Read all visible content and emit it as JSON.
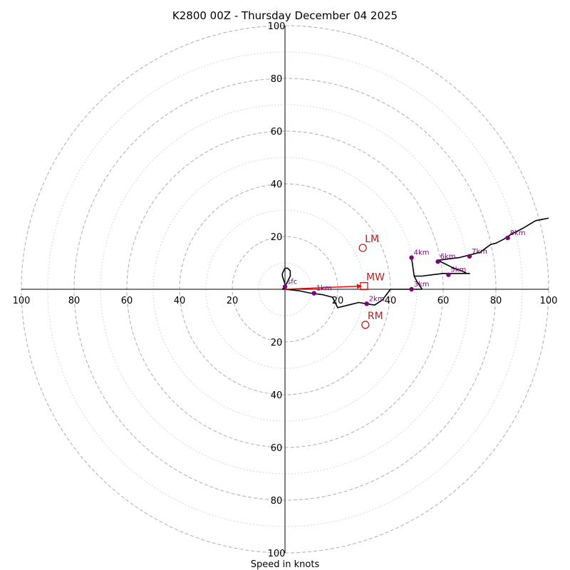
{
  "chart_data": {
    "type": "hodograph",
    "title": "K2800 00Z - Thursday December 04 2025",
    "xlabel": "Speed in knots",
    "range": [
      -100,
      100
    ],
    "ring_major": [
      20,
      40,
      60,
      80,
      100
    ],
    "ring_minor": [
      10,
      30,
      50,
      70,
      90
    ],
    "tick_values": [
      20,
      40,
      60,
      80,
      100
    ],
    "x_tick_labels": [
      "100",
      "80",
      "60",
      "40",
      "20",
      "20",
      "40",
      "60",
      "80",
      "100"
    ],
    "y_tick_labels": [
      "100",
      "80",
      "60",
      "40",
      "20",
      "20",
      "40",
      "60",
      "80",
      "100"
    ],
    "trace": {
      "u": [
        0,
        -1,
        -1,
        0,
        1,
        2,
        2,
        1,
        0,
        -1,
        0,
        5,
        10,
        14,
        18,
        20,
        24,
        28,
        31,
        34,
        37,
        40,
        44,
        48,
        52,
        50,
        49,
        48,
        49,
        52,
        56,
        60,
        64,
        66,
        70,
        69,
        67,
        64,
        62,
        60,
        58,
        62,
        66,
        70,
        74,
        78,
        80,
        83,
        86,
        90,
        95,
        100
      ],
      "v": [
        2,
        5,
        6,
        8,
        8,
        7,
        5,
        3,
        1,
        0,
        0,
        -0.5,
        -1.5,
        -2,
        -3,
        -7,
        -6,
        -5,
        -5.5,
        -6,
        -4,
        0,
        0,
        0,
        0,
        3,
        5,
        12,
        5,
        5,
        5.5,
        6,
        6,
        6,
        6,
        6,
        7,
        8,
        9,
        10,
        11,
        11.5,
        12,
        13,
        14,
        17,
        17.5,
        19,
        21,
        23,
        26,
        27
      ]
    },
    "height_markers": [
      {
        "label": "sfc",
        "u": 0,
        "v": 1
      },
      {
        "label": "1km",
        "u": 11,
        "v": -1.5
      },
      {
        "label": "2km",
        "u": 31,
        "v": -5.5
      },
      {
        "label": "3km",
        "u": 48,
        "v": 0
      },
      {
        "label": "4km",
        "u": 48,
        "v": 12
      },
      {
        "label": "5km",
        "u": 62,
        "v": 5.5
      },
      {
        "label": "6km",
        "u": 58,
        "v": 10.5
      },
      {
        "label": "7km",
        "u": 70,
        "v": 12.5
      },
      {
        "label": "8km",
        "u": 84.5,
        "v": 19.5
      }
    ],
    "mean_wind": {
      "label": "MW",
      "u": 30,
      "v": 1.2
    },
    "left_mover": {
      "label": "LM",
      "u": 29.5,
      "v": 15.7
    },
    "right_mover": {
      "label": "RM",
      "u": 30.5,
      "v": -13.5
    },
    "colors": {
      "trace": "#000000",
      "markers": "#800080",
      "motion": "#b22222",
      "arrow": "#ff0000",
      "ring_major": "#b5b5b5",
      "ring_minor": "#cccccc"
    }
  }
}
